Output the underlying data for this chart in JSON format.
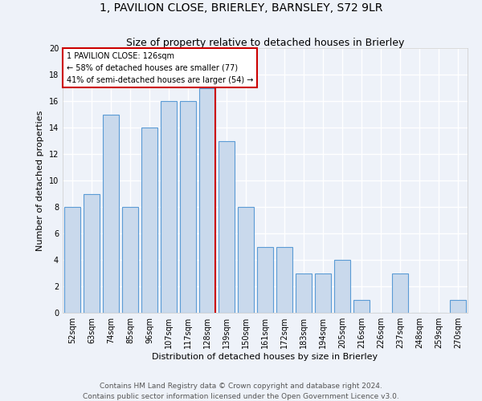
{
  "title": "1, PAVILION CLOSE, BRIERLEY, BARNSLEY, S72 9LR",
  "subtitle": "Size of property relative to detached houses in Brierley",
  "xlabel": "Distribution of detached houses by size in Brierley",
  "ylabel": "Number of detached properties",
  "categories": [
    "52sqm",
    "63sqm",
    "74sqm",
    "85sqm",
    "96sqm",
    "107sqm",
    "117sqm",
    "128sqm",
    "139sqm",
    "150sqm",
    "161sqm",
    "172sqm",
    "183sqm",
    "194sqm",
    "205sqm",
    "216sqm",
    "226sqm",
    "237sqm",
    "248sqm",
    "259sqm",
    "270sqm"
  ],
  "values": [
    8,
    9,
    15,
    8,
    14,
    16,
    16,
    17,
    13,
    8,
    5,
    5,
    3,
    3,
    4,
    1,
    0,
    3,
    0,
    0,
    1
  ],
  "bar_color": "#c9d9ec",
  "bar_edge_color": "#5b9bd5",
  "property_line_index": 7,
  "property_label": "1 PAVILION CLOSE: 126sqm",
  "annotation_line1": "← 58% of detached houses are smaller (77)",
  "annotation_line2": "41% of semi-detached houses are larger (54) →",
  "annotation_box_color": "#ffffff",
  "annotation_box_edge": "#cc0000",
  "vline_color": "#cc0000",
  "background_color": "#eef2f9",
  "grid_color": "#ffffff",
  "footer_line1": "Contains HM Land Registry data © Crown copyright and database right 2024.",
  "footer_line2": "Contains public sector information licensed under the Open Government Licence v3.0.",
  "ylim": [
    0,
    20
  ],
  "title_fontsize": 10,
  "subtitle_fontsize": 9,
  "axis_label_fontsize": 8,
  "tick_fontsize": 7,
  "footer_fontsize": 6.5
}
